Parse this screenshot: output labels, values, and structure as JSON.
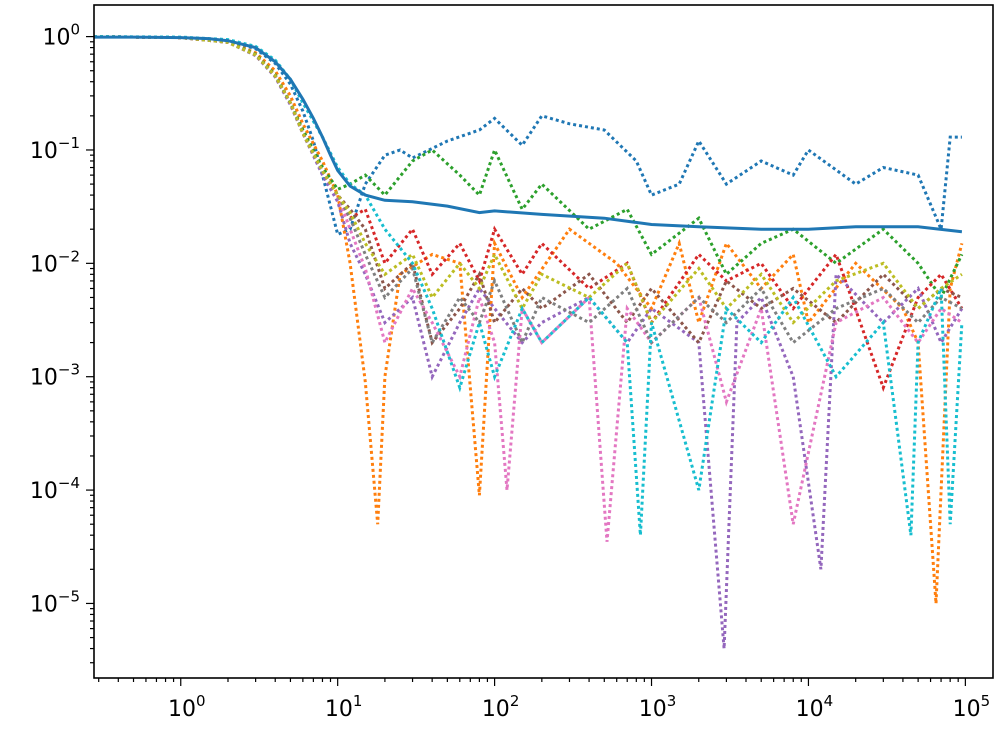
{
  "chart_data": {
    "type": "line",
    "title": "",
    "xlabel": "",
    "ylabel": "",
    "x_scale": "log",
    "y_scale": "log",
    "xlim": [
      0.28,
      150000
    ],
    "ylim": [
      2.2e-06,
      1.9
    ],
    "grid": false,
    "legend": "none",
    "x_ticks": [
      {
        "base": "10",
        "exp": "0",
        "value": 1
      },
      {
        "base": "10",
        "exp": "1",
        "value": 10
      },
      {
        "base": "10",
        "exp": "2",
        "value": 100
      },
      {
        "base": "10",
        "exp": "3",
        "value": 1000
      },
      {
        "base": "10",
        "exp": "4",
        "value": 10000
      },
      {
        "base": "10",
        "exp": "5",
        "value": 100000
      }
    ],
    "y_ticks": [
      {
        "base": "10",
        "exp": "0",
        "value": 1
      },
      {
        "base": "10",
        "exp": "−1",
        "value": 0.1
      },
      {
        "base": "10",
        "exp": "−2",
        "value": 0.01
      },
      {
        "base": "10",
        "exp": "−3",
        "value": 0.001
      },
      {
        "base": "10",
        "exp": "−4",
        "value": 0.0001
      },
      {
        "base": "10",
        "exp": "−5",
        "value": 1e-05
      }
    ],
    "trace_colors": [
      "#1f77b4",
      "#ff7f0e",
      "#2ca02c",
      "#d62728",
      "#9467bd",
      "#8c564b",
      "#e377c2",
      "#7f7f7f",
      "#bcbd22",
      "#17becf"
    ],
    "mean_series": {
      "color": "#1f77b4",
      "style": "solid",
      "x": [
        0.28,
        0.5,
        1,
        1.5,
        2,
        3,
        4,
        5,
        6,
        7,
        8,
        9,
        10,
        12,
        15,
        20,
        30,
        50,
        80,
        100,
        200,
        500,
        1000,
        2000,
        5000,
        10000,
        20000,
        50000,
        95000
      ],
      "y": [
        0.99,
        0.99,
        0.98,
        0.96,
        0.92,
        0.8,
        0.6,
        0.42,
        0.28,
        0.19,
        0.13,
        0.09,
        0.066,
        0.048,
        0.04,
        0.036,
        0.035,
        0.032,
        0.028,
        0.029,
        0.027,
        0.025,
        0.022,
        0.021,
        0.02,
        0.02,
        0.021,
        0.021,
        0.019
      ]
    },
    "trace_series": [
      {
        "color": "#1f77b4",
        "style": "dotted",
        "x": [
          0.28,
          1,
          2,
          3,
          4,
          5,
          6,
          7,
          8,
          10,
          12,
          15,
          20,
          25,
          30,
          50,
          80,
          100,
          150,
          200,
          300,
          500,
          800,
          1000,
          1500,
          2000,
          3000,
          5000,
          8000,
          10000,
          20000,
          30000,
          50000,
          70000,
          80000,
          95000
        ],
        "y": [
          1,
          0.98,
          0.92,
          0.78,
          0.58,
          0.38,
          0.22,
          0.12,
          0.06,
          0.018,
          0.02,
          0.05,
          0.09,
          0.1,
          0.085,
          0.12,
          0.15,
          0.19,
          0.11,
          0.2,
          0.17,
          0.15,
          0.08,
          0.04,
          0.05,
          0.12,
          0.05,
          0.08,
          0.06,
          0.1,
          0.05,
          0.07,
          0.06,
          0.02,
          0.13,
          0.13
        ]
      },
      {
        "color": "#ff7f0e",
        "style": "dotted",
        "x": [
          0.28,
          1,
          2,
          3,
          4,
          5,
          6,
          8,
          10,
          12,
          15,
          18,
          20,
          25,
          40,
          60,
          80,
          100,
          150,
          300,
          600,
          1000,
          1500,
          2000,
          3000,
          5000,
          8000,
          10000,
          20000,
          40000,
          50000,
          65000,
          80000,
          95000
        ],
        "y": [
          1,
          0.98,
          0.9,
          0.72,
          0.5,
          0.3,
          0.17,
          0.08,
          0.04,
          0.01,
          0.0009,
          5e-05,
          0.001,
          0.008,
          0.012,
          0.01,
          9e-05,
          0.015,
          0.005,
          0.02,
          0.01,
          0.004,
          0.015,
          0.003,
          0.015,
          0.006,
          0.012,
          0.003,
          0.01,
          0.004,
          0.002,
          1e-05,
          0.006,
          0.015
        ]
      },
      {
        "color": "#2ca02c",
        "style": "dotted",
        "x": [
          0.28,
          1,
          2,
          3,
          4,
          5,
          6,
          8,
          10,
          12,
          15,
          20,
          30,
          40,
          60,
          80,
          100,
          150,
          200,
          400,
          700,
          1000,
          2000,
          3000,
          5000,
          8000,
          15000,
          30000,
          50000,
          70000,
          95000
        ],
        "y": [
          1,
          0.98,
          0.9,
          0.7,
          0.46,
          0.26,
          0.15,
          0.07,
          0.045,
          0.05,
          0.06,
          0.04,
          0.08,
          0.1,
          0.06,
          0.04,
          0.1,
          0.03,
          0.05,
          0.02,
          0.03,
          0.012,
          0.025,
          0.008,
          0.015,
          0.02,
          0.01,
          0.02,
          0.01,
          0.005,
          0.012
        ]
      },
      {
        "color": "#d62728",
        "style": "dotted",
        "x": [
          0.28,
          1,
          2,
          3,
          4,
          5,
          6,
          8,
          10,
          12,
          15,
          20,
          30,
          40,
          60,
          80,
          100,
          150,
          200,
          400,
          700,
          1000,
          2000,
          3000,
          5000,
          8000,
          15000,
          30000,
          50000,
          70000,
          95000
        ],
        "y": [
          1,
          0.98,
          0.89,
          0.69,
          0.45,
          0.26,
          0.14,
          0.065,
          0.04,
          0.025,
          0.03,
          0.01,
          0.02,
          0.008,
          0.015,
          0.007,
          0.02,
          0.008,
          0.015,
          0.006,
          0.01,
          0.003,
          0.012,
          0.007,
          0.01,
          0.004,
          0.012,
          0.0008,
          0.005,
          0.008,
          0.004
        ]
      },
      {
        "color": "#9467bd",
        "style": "dotted",
        "x": [
          0.28,
          1,
          2,
          3,
          4,
          5,
          6,
          8,
          10,
          12,
          15,
          20,
          30,
          40,
          60,
          80,
          100,
          150,
          200,
          400,
          700,
          1000,
          2000,
          2900,
          3500,
          5000,
          8000,
          12000,
          15000,
          30000,
          50000,
          70000,
          95000
        ],
        "y": [
          1,
          0.98,
          0.89,
          0.68,
          0.44,
          0.25,
          0.14,
          0.06,
          0.035,
          0.015,
          0.008,
          0.003,
          0.005,
          0.001,
          0.003,
          0.006,
          0.004,
          0.002,
          0.003,
          0.005,
          0.002,
          0.004,
          0.002,
          4e-06,
          0.003,
          0.005,
          0.001,
          2e-05,
          0.008,
          0.003,
          0.006,
          0.002,
          0.004
        ]
      },
      {
        "color": "#8c564b",
        "style": "dotted",
        "x": [
          0.28,
          1,
          2,
          3,
          4,
          5,
          6,
          8,
          10,
          12,
          15,
          20,
          30,
          40,
          60,
          80,
          100,
          150,
          200,
          400,
          700,
          1000,
          2000,
          3000,
          5000,
          8000,
          15000,
          30000,
          50000,
          70000,
          95000
        ],
        "y": [
          1,
          0.98,
          0.89,
          0.69,
          0.45,
          0.26,
          0.14,
          0.065,
          0.04,
          0.03,
          0.02,
          0.006,
          0.01,
          0.002,
          0.004,
          0.008,
          0.003,
          0.006,
          0.004,
          0.008,
          0.003,
          0.006,
          0.002,
          0.007,
          0.004,
          0.006,
          0.003,
          0.008,
          0.004,
          0.006,
          0.005
        ]
      },
      {
        "color": "#e377c2",
        "style": "dotted",
        "x": [
          0.28,
          1,
          2,
          3,
          4,
          5,
          6,
          8,
          10,
          12,
          15,
          20,
          30,
          40,
          60,
          80,
          100,
          120,
          150,
          200,
          400,
          520,
          700,
          1000,
          2000,
          3000,
          5000,
          8000,
          15000,
          30000,
          50000,
          70000,
          95000
        ],
        "y": [
          1,
          0.98,
          0.89,
          0.69,
          0.45,
          0.26,
          0.14,
          0.065,
          0.04,
          0.02,
          0.009,
          0.002,
          0.006,
          0.003,
          0.001,
          0.005,
          0.002,
          0.0001,
          0.004,
          0.002,
          0.005,
          3.5e-05,
          0.004,
          0.002,
          0.005,
          0.0006,
          0.004,
          5e-05,
          0.003,
          0.005,
          0.002,
          0.004,
          0.003
        ]
      },
      {
        "color": "#7f7f7f",
        "style": "dotted",
        "x": [
          0.28,
          1,
          2,
          3,
          4,
          5,
          6,
          8,
          10,
          12,
          15,
          20,
          30,
          40,
          60,
          80,
          100,
          150,
          200,
          400,
          700,
          1000,
          2000,
          3000,
          5000,
          8000,
          15000,
          30000,
          50000,
          70000,
          95000
        ],
        "y": [
          1,
          0.98,
          0.89,
          0.69,
          0.45,
          0.26,
          0.14,
          0.065,
          0.04,
          0.025,
          0.012,
          0.005,
          0.009,
          0.002,
          0.005,
          0.003,
          0.007,
          0.002,
          0.005,
          0.003,
          0.006,
          0.002,
          0.005,
          0.003,
          0.006,
          0.002,
          0.004,
          0.006,
          0.003,
          0.005,
          0.004
        ]
      },
      {
        "color": "#bcbd22",
        "style": "dotted",
        "x": [
          0.28,
          1,
          2,
          3,
          4,
          5,
          6,
          8,
          10,
          12,
          15,
          20,
          30,
          40,
          60,
          80,
          100,
          150,
          200,
          400,
          700,
          1000,
          2000,
          3000,
          5000,
          8000,
          15000,
          30000,
          50000,
          70000,
          95000
        ],
        "y": [
          1,
          0.98,
          0.89,
          0.69,
          0.45,
          0.26,
          0.14,
          0.065,
          0.04,
          0.028,
          0.015,
          0.008,
          0.012,
          0.005,
          0.01,
          0.006,
          0.012,
          0.004,
          0.008,
          0.005,
          0.01,
          0.003,
          0.009,
          0.004,
          0.008,
          0.003,
          0.007,
          0.01,
          0.004,
          0.006,
          0.008
        ]
      },
      {
        "color": "#17becf",
        "style": "dotted",
        "x": [
          0.28,
          1,
          2,
          3,
          4,
          5,
          6,
          8,
          10,
          12,
          15,
          20,
          30,
          40,
          60,
          80,
          100,
          150,
          200,
          400,
          700,
          850,
          1000,
          2000,
          3000,
          5000,
          8000,
          15000,
          30000,
          45000,
          50000,
          70000,
          80000,
          95000
        ],
        "y": [
          1,
          0.99,
          0.94,
          0.82,
          0.62,
          0.42,
          0.26,
          0.13,
          0.07,
          0.05,
          0.04,
          0.02,
          0.01,
          0.004,
          0.0008,
          0.003,
          0.001,
          0.004,
          0.002,
          0.005,
          0.002,
          4e-05,
          0.003,
          0.0001,
          0.004,
          0.002,
          0.005,
          0.001,
          0.003,
          4e-05,
          0.002,
          0.006,
          5e-05,
          0.003
        ]
      }
    ]
  }
}
